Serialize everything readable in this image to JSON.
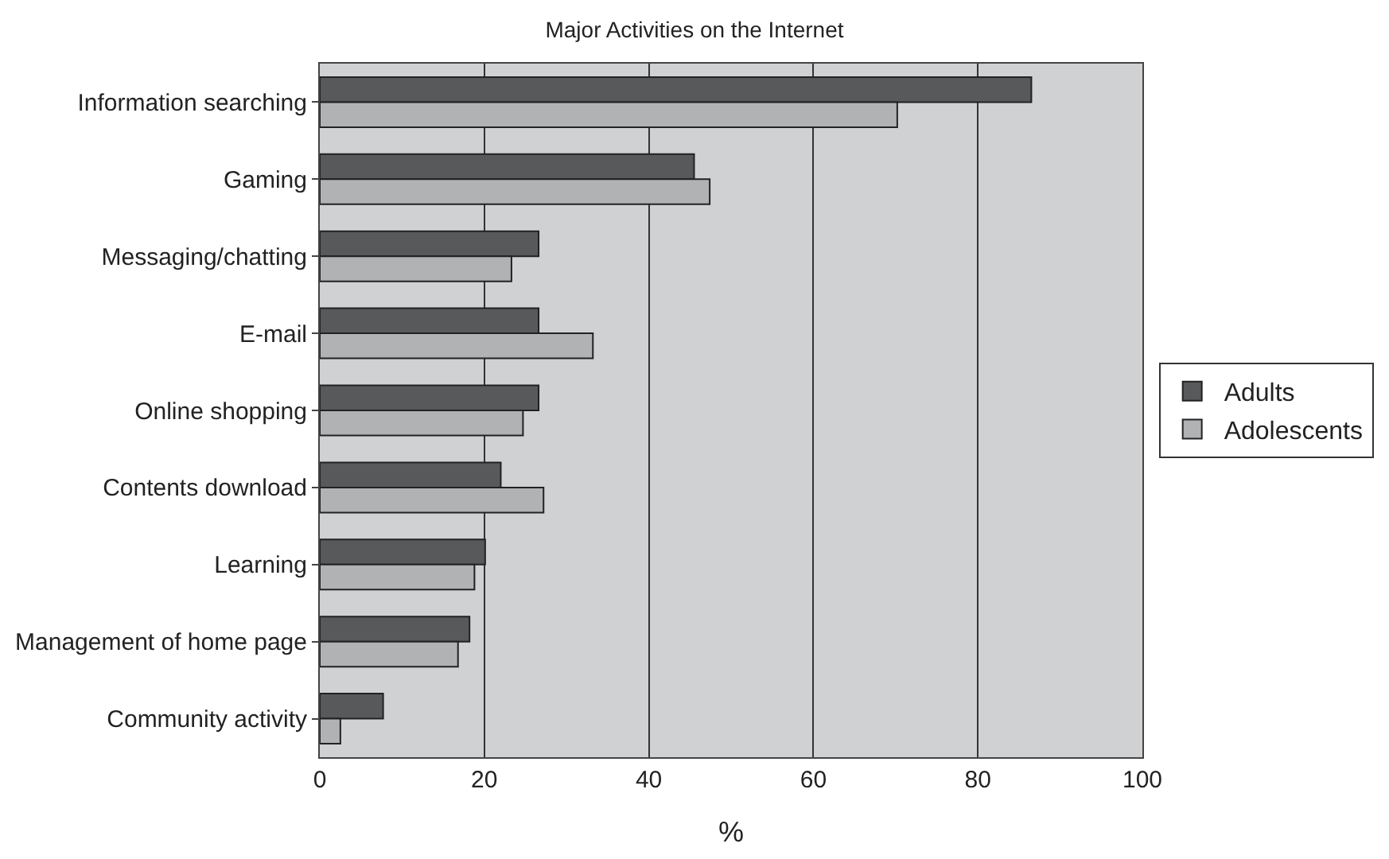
{
  "chart_data": {
    "type": "bar",
    "orientation": "horizontal",
    "title": "Major Activities on the Internet",
    "xlabel": "%",
    "categories": [
      "Information searching",
      "Gaming",
      "Messaging/chatting",
      "E-mail",
      "Online shopping",
      "Contents download",
      "Learning",
      "Management of home page",
      "Community activity"
    ],
    "series": [
      {
        "name": "Adults",
        "color": "#58595b",
        "values": [
          86.5,
          45.5,
          26.6,
          26.6,
          26.6,
          22,
          20.1,
          18.2,
          7.7
        ]
      },
      {
        "name": "Adolescents",
        "color": "#b1b2b4",
        "values": [
          70.2,
          47.4,
          23.3,
          33.2,
          24.7,
          27.2,
          18.8,
          16.8,
          2.5
        ]
      }
    ],
    "xlim": [
      0,
      100
    ],
    "xticks": [
      0,
      20,
      40,
      60,
      80,
      100
    ],
    "grid": "x",
    "legend": "right"
  }
}
